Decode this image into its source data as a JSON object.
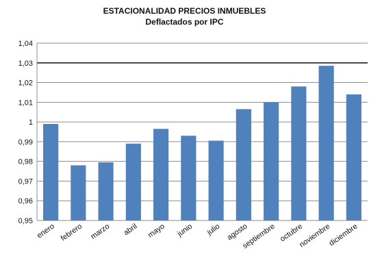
{
  "chart_data": {
    "type": "bar",
    "title": "ESTACIONALIDAD PRECIOS INMUEBLES",
    "subtitle": "Deflactados por IPC",
    "xlabel": "",
    "ylabel": "",
    "ylim": [
      0.95,
      1.04
    ],
    "yticks": [
      "0,95",
      "0,96",
      "0,97",
      "0,98",
      "0,99",
      "1",
      "1,01",
      "1,02",
      "1,03",
      "1,04"
    ],
    "grid": true,
    "categories": [
      "enero",
      "febrero",
      "marzo",
      "abril",
      "mayo",
      "junio",
      "julio",
      "agosto",
      "septiembre",
      "octubre",
      "noviembre",
      "diciembre"
    ],
    "values": [
      0.999,
      0.978,
      0.9795,
      0.989,
      0.9965,
      0.993,
      0.9905,
      1.0065,
      1.01,
      1.018,
      1.0285,
      1.014
    ],
    "bar_color": "#4f81bd"
  }
}
